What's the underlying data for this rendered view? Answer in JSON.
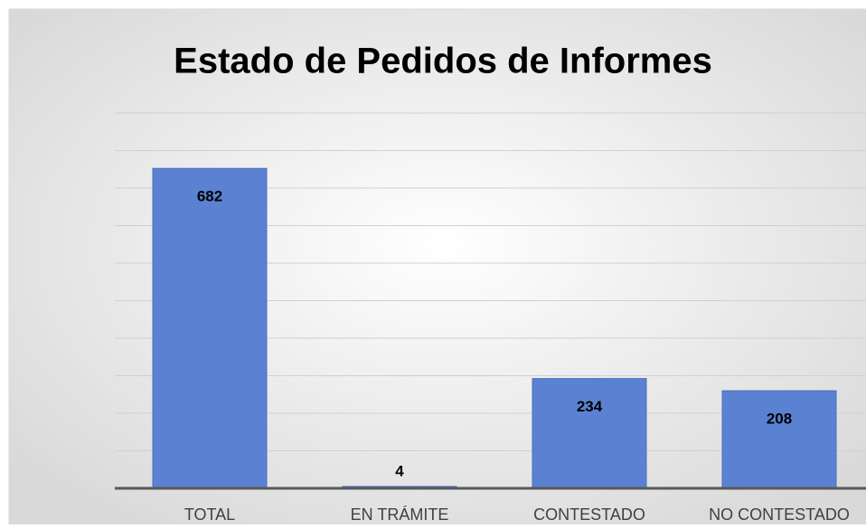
{
  "chart_data": {
    "type": "bar",
    "title": "Estado de Pedidos de Informes",
    "categories": [
      "TOTAL",
      "EN TRÁMITE",
      "CONTESTADO",
      "NO CONTESTADO"
    ],
    "values": [
      682,
      4,
      234,
      208
    ],
    "color": "#5b82d2",
    "ylim": [
      0,
      800
    ],
    "yticks": [
      0,
      80,
      160,
      240,
      320,
      400,
      480,
      560,
      640,
      720,
      800
    ],
    "grid": true
  }
}
